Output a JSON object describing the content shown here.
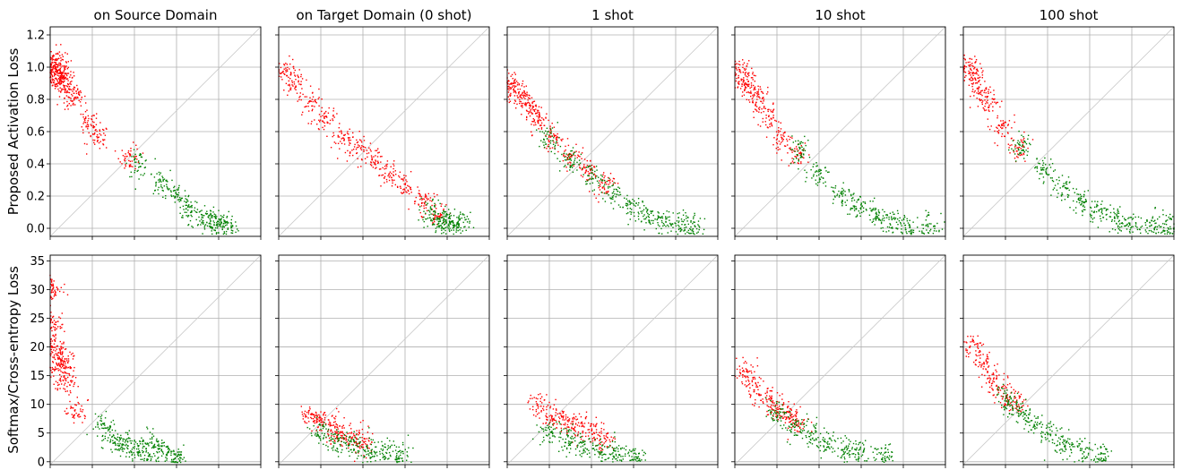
{
  "chart_data": {
    "type": "scatter",
    "title": "",
    "subtitle": "",
    "rows": [
      {
        "ylabel": "Proposed Activation Loss",
        "ylim": [
          -0.05,
          1.25
        ],
        "yticks": [
          "0.0",
          "0.2",
          "0.4",
          "0.6",
          "0.8",
          "1.0",
          "1.2"
        ],
        "ytick_values": [
          0,
          0.2,
          0.4,
          0.6,
          0.8,
          1.0,
          1.2
        ]
      },
      {
        "ylabel": "Softmax/Cross-entropy Loss",
        "ylim": [
          -0.5,
          36
        ],
        "yticks": [
          "0",
          "5",
          "10",
          "15",
          "20",
          "25",
          "30",
          "35"
        ],
        "ytick_values": [
          0,
          5,
          10,
          15,
          20,
          25,
          30,
          35
        ]
      }
    ],
    "columns": [
      {
        "title": "on Source Domain"
      },
      {
        "title": "on Target Domain (0 shot)"
      },
      {
        "title": "1 shot"
      },
      {
        "title": "10 shot"
      },
      {
        "title": "100 shot"
      }
    ],
    "x_range": [
      0,
      1
    ],
    "grid": true,
    "diagonal_reference_line": true,
    "series_colors": {
      "red": "#ff0000",
      "green": "#008000"
    },
    "panels": [
      {
        "row": 0,
        "col": 0,
        "red": [
          [
            0.02,
            0.99
          ],
          [
            0.03,
            0.95
          ],
          [
            0.04,
            0.97
          ],
          [
            0.05,
            0.94
          ],
          [
            0.03,
            1.05
          ],
          [
            0.06,
            0.9
          ],
          [
            0.09,
            0.86
          ],
          [
            0.12,
            0.81
          ],
          [
            0.18,
            0.65
          ],
          [
            0.23,
            0.56
          ],
          [
            0.38,
            0.44
          ]
        ],
        "green": [
          [
            0.42,
            0.4
          ],
          [
            0.52,
            0.28
          ],
          [
            0.6,
            0.2
          ],
          [
            0.66,
            0.13
          ],
          [
            0.72,
            0.07
          ],
          [
            0.76,
            0.04
          ],
          [
            0.8,
            0.02
          ],
          [
            0.84,
            0.02
          ]
        ]
      },
      {
        "row": 0,
        "col": 1,
        "red": [
          [
            0.03,
            0.98
          ],
          [
            0.08,
            0.9
          ],
          [
            0.15,
            0.78
          ],
          [
            0.22,
            0.68
          ],
          [
            0.3,
            0.58
          ],
          [
            0.38,
            0.5
          ],
          [
            0.45,
            0.42
          ],
          [
            0.52,
            0.34
          ],
          [
            0.6,
            0.26
          ],
          [
            0.68,
            0.17
          ],
          [
            0.75,
            0.08
          ]
        ],
        "green": [
          [
            0.72,
            0.1
          ],
          [
            0.76,
            0.06
          ],
          [
            0.79,
            0.03
          ],
          [
            0.82,
            0.02
          ],
          [
            0.86,
            0.02
          ]
        ]
      },
      {
        "row": 0,
        "col": 2,
        "red": [
          [
            0.02,
            0.9
          ],
          [
            0.05,
            0.84
          ],
          [
            0.08,
            0.8
          ],
          [
            0.12,
            0.74
          ],
          [
            0.16,
            0.66
          ],
          [
            0.22,
            0.56
          ],
          [
            0.3,
            0.46
          ],
          [
            0.38,
            0.36
          ],
          [
            0.46,
            0.28
          ]
        ],
        "green": [
          [
            0.2,
            0.55
          ],
          [
            0.3,
            0.42
          ],
          [
            0.4,
            0.32
          ],
          [
            0.5,
            0.22
          ],
          [
            0.58,
            0.14
          ],
          [
            0.66,
            0.08
          ],
          [
            0.74,
            0.04
          ],
          [
            0.82,
            0.02
          ],
          [
            0.88,
            0.01
          ]
        ]
      },
      {
        "row": 0,
        "col": 3,
        "red": [
          [
            0.03,
            0.98
          ],
          [
            0.05,
            0.92
          ],
          [
            0.08,
            0.86
          ],
          [
            0.12,
            0.78
          ],
          [
            0.16,
            0.68
          ],
          [
            0.22,
            0.56
          ],
          [
            0.3,
            0.46
          ]
        ],
        "green": [
          [
            0.3,
            0.48
          ],
          [
            0.4,
            0.34
          ],
          [
            0.5,
            0.22
          ],
          [
            0.58,
            0.14
          ],
          [
            0.66,
            0.08
          ],
          [
            0.74,
            0.04
          ],
          [
            0.82,
            0.02
          ],
          [
            0.92,
            0.01
          ]
        ]
      },
      {
        "row": 0,
        "col": 4,
        "red": [
          [
            0.03,
            1.0
          ],
          [
            0.05,
            0.94
          ],
          [
            0.08,
            0.86
          ],
          [
            0.12,
            0.76
          ],
          [
            0.18,
            0.62
          ],
          [
            0.26,
            0.5
          ]
        ],
        "green": [
          [
            0.28,
            0.5
          ],
          [
            0.38,
            0.36
          ],
          [
            0.48,
            0.24
          ],
          [
            0.56,
            0.16
          ],
          [
            0.64,
            0.1
          ],
          [
            0.72,
            0.06
          ],
          [
            0.8,
            0.03
          ],
          [
            0.9,
            0.02
          ],
          [
            0.97,
            0.01
          ]
        ]
      },
      {
        "row": 1,
        "col": 0,
        "red": [
          [
            0.01,
            30
          ],
          [
            0.02,
            24
          ],
          [
            0.03,
            20
          ],
          [
            0.04,
            18
          ],
          [
            0.05,
            17
          ],
          [
            0.06,
            16
          ],
          [
            0.08,
            14
          ],
          [
            0.12,
            9
          ]
        ],
        "green": [
          [
            0.25,
            6
          ],
          [
            0.3,
            4
          ],
          [
            0.35,
            3
          ],
          [
            0.4,
            2
          ],
          [
            0.45,
            2
          ],
          [
            0.5,
            3
          ],
          [
            0.55,
            1.5
          ],
          [
            0.6,
            1
          ]
        ]
      },
      {
        "row": 1,
        "col": 1,
        "red": [
          [
            0.15,
            8
          ],
          [
            0.2,
            7
          ],
          [
            0.25,
            6
          ],
          [
            0.3,
            5
          ],
          [
            0.35,
            4
          ],
          [
            0.4,
            3
          ]
        ],
        "green": [
          [
            0.2,
            5
          ],
          [
            0.28,
            4
          ],
          [
            0.35,
            3
          ],
          [
            0.42,
            2
          ],
          [
            0.5,
            1.5
          ],
          [
            0.58,
            1
          ]
        ]
      },
      {
        "row": 1,
        "col": 2,
        "red": [
          [
            0.15,
            10
          ],
          [
            0.22,
            8
          ],
          [
            0.28,
            7
          ],
          [
            0.34,
            6
          ],
          [
            0.4,
            5
          ],
          [
            0.46,
            4
          ]
        ],
        "green": [
          [
            0.2,
            5
          ],
          [
            0.28,
            4
          ],
          [
            0.36,
            3
          ],
          [
            0.44,
            2
          ],
          [
            0.52,
            1.5
          ],
          [
            0.6,
            1
          ]
        ]
      },
      {
        "row": 1,
        "col": 3,
        "red": [
          [
            0.05,
            16
          ],
          [
            0.1,
            13
          ],
          [
            0.15,
            11
          ],
          [
            0.2,
            9
          ],
          [
            0.25,
            8
          ],
          [
            0.3,
            7
          ]
        ],
        "green": [
          [
            0.2,
            8
          ],
          [
            0.28,
            6
          ],
          [
            0.36,
            5
          ],
          [
            0.44,
            3
          ],
          [
            0.52,
            2
          ],
          [
            0.6,
            1.5
          ],
          [
            0.7,
            1
          ]
        ]
      },
      {
        "row": 1,
        "col": 4,
        "red": [
          [
            0.05,
            20
          ],
          [
            0.1,
            17
          ],
          [
            0.15,
            14
          ],
          [
            0.2,
            12
          ],
          [
            0.25,
            10
          ]
        ],
        "green": [
          [
            0.2,
            11
          ],
          [
            0.26,
            9
          ],
          [
            0.32,
            7
          ],
          [
            0.4,
            5
          ],
          [
            0.48,
            3
          ],
          [
            0.56,
            2
          ],
          [
            0.66,
            1
          ]
        ]
      }
    ]
  }
}
